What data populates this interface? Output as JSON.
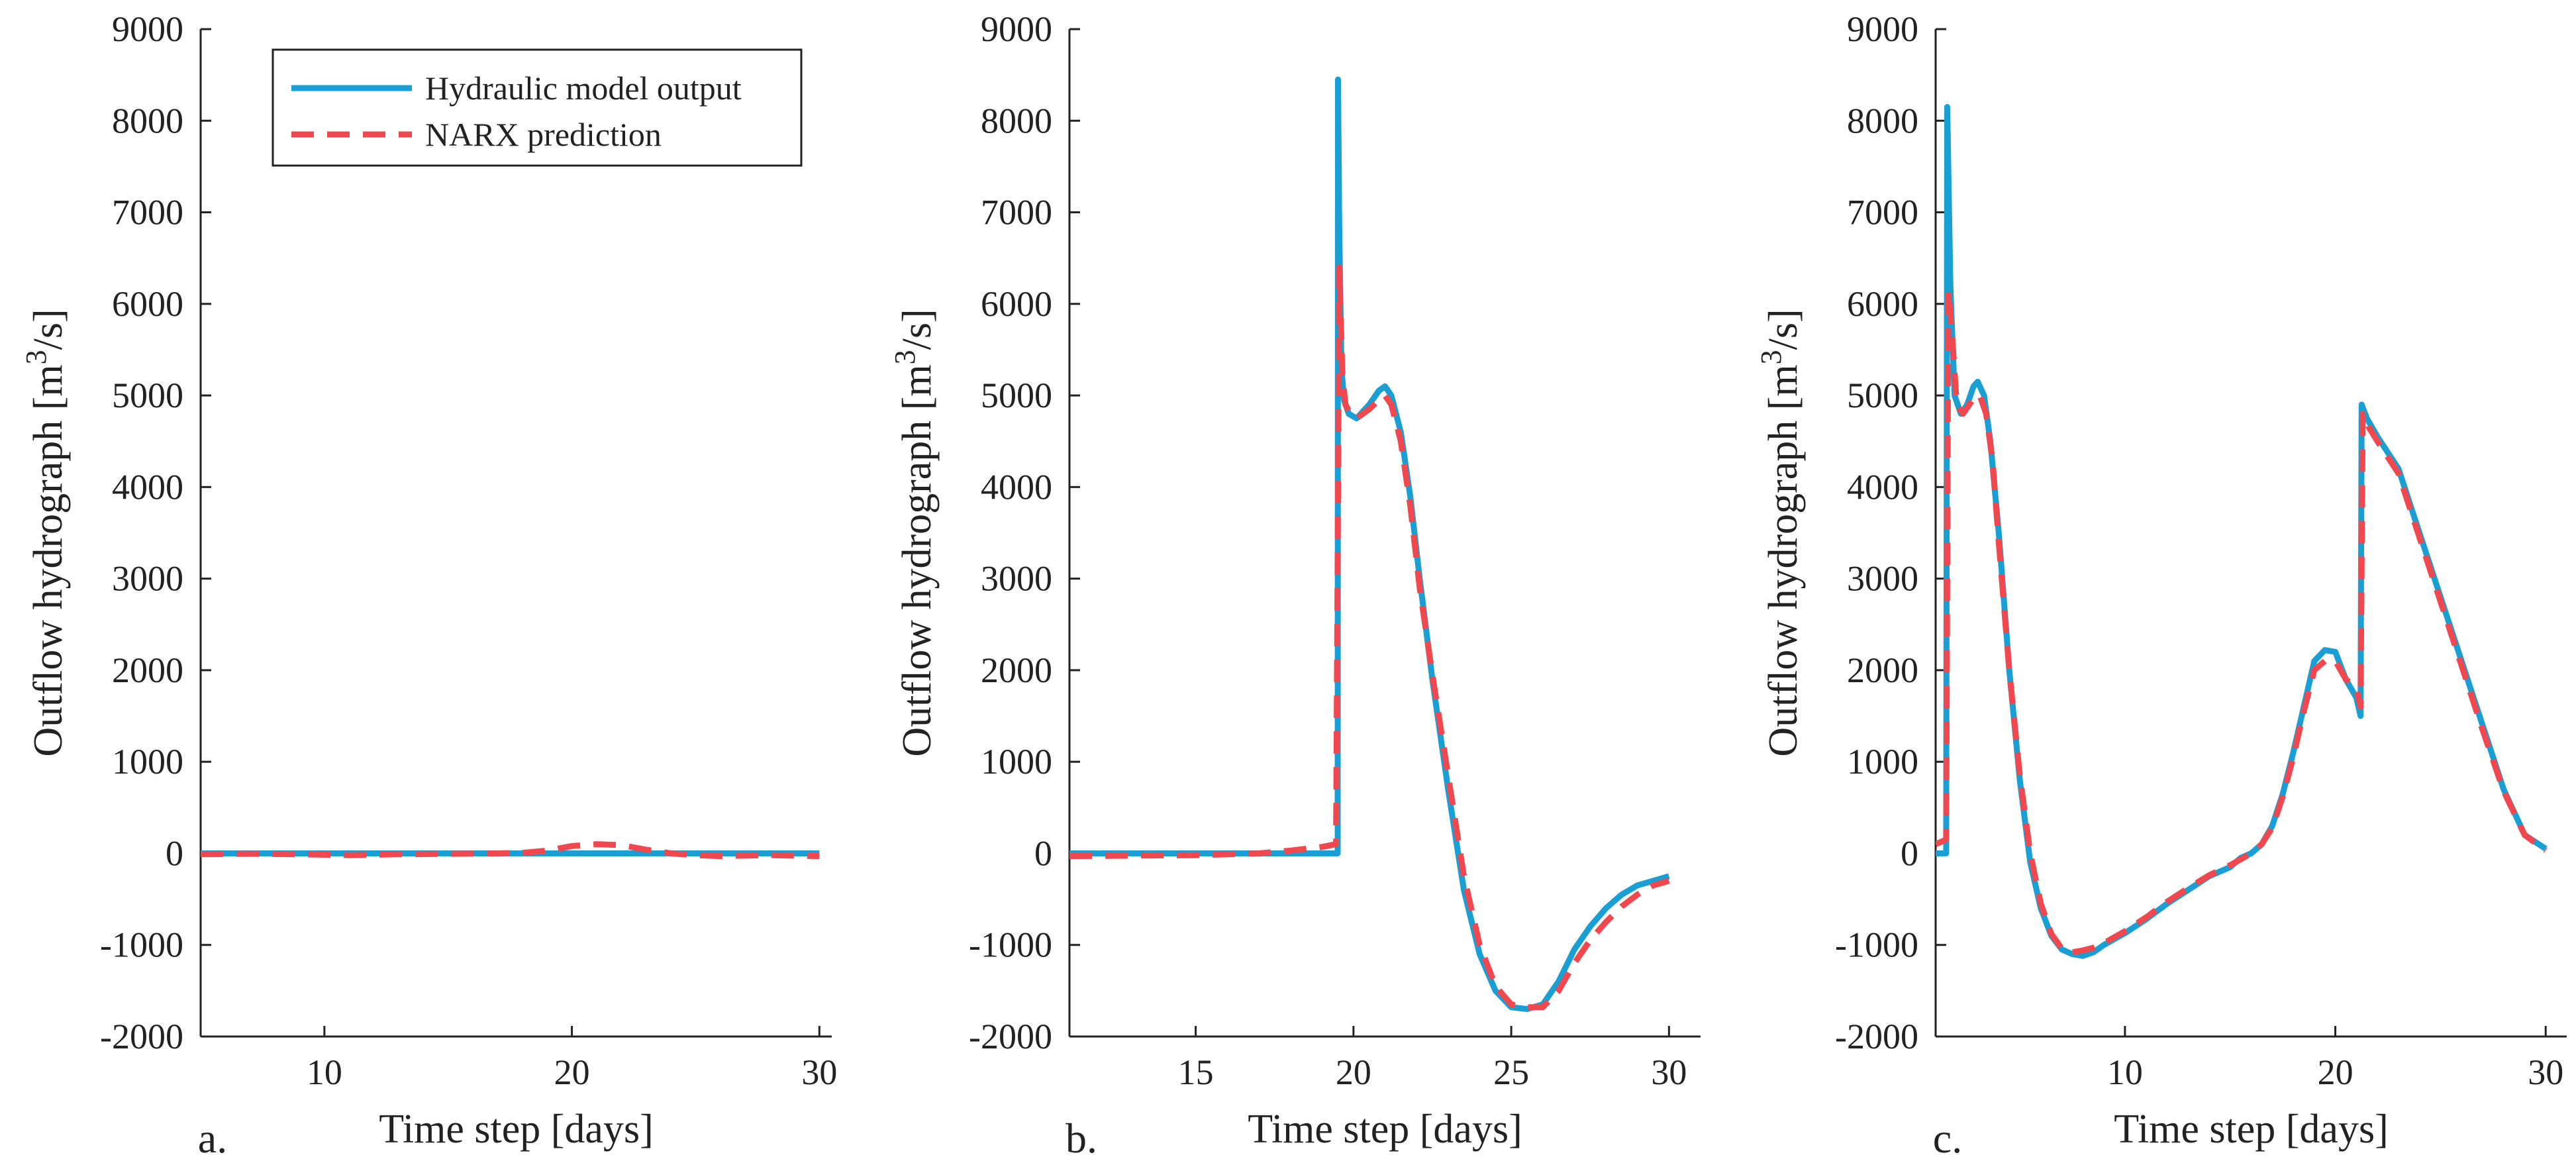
{
  "figure": {
    "colors": {
      "hydraulic": "#1a9fd4",
      "narx": "#f0484e",
      "axis": "#222222"
    },
    "legend": {
      "items": [
        {
          "label": "Hydraulic model output",
          "style": "solid",
          "color": "#1a9fd4"
        },
        {
          "label": "NARX prediction",
          "style": "dashed",
          "color": "#f0484e"
        }
      ]
    }
  },
  "chart_data": [
    {
      "type": "line",
      "panel_letter": "a.",
      "xlabel": "Time step [days]",
      "ylabel_main": "Outflow hydrograph [m",
      "ylabel_sup": "3",
      "ylabel_tail": "/s]",
      "xlim": [
        5,
        30.5
      ],
      "ylim": [
        -2000,
        9000
      ],
      "xticks": [
        10,
        20,
        30
      ],
      "yticks": [
        -2000,
        -1000,
        0,
        1000,
        2000,
        3000,
        4000,
        5000,
        6000,
        7000,
        8000,
        9000
      ],
      "series": [
        {
          "name": "Hydraulic model output",
          "x": [
            5,
            30
          ],
          "y": [
            0,
            0
          ]
        },
        {
          "name": "NARX prediction",
          "x": [
            5,
            7,
            9,
            11,
            13,
            15,
            17,
            18,
            19,
            20,
            21,
            22,
            23,
            24,
            25,
            26,
            28,
            30
          ],
          "y": [
            -10,
            -5,
            -10,
            -20,
            -10,
            -5,
            0,
            5,
            30,
            80,
            100,
            90,
            40,
            0,
            -20,
            -30,
            -20,
            -30
          ]
        }
      ]
    },
    {
      "type": "line",
      "panel_letter": "b.",
      "xlabel": "Time step [days]",
      "ylabel_main": "Outflow hydrograph [m",
      "ylabel_sup": "3",
      "ylabel_tail": "/s]",
      "xlim": [
        11,
        31
      ],
      "ylim": [
        -2000,
        9000
      ],
      "xticks": [
        15,
        20,
        25,
        30
      ],
      "yticks": [
        -2000,
        -1000,
        0,
        1000,
        2000,
        3000,
        4000,
        5000,
        6000,
        7000,
        8000,
        9000
      ],
      "series": [
        {
          "name": "Hydraulic model output",
          "x": [
            11,
            19.5,
            19.51,
            19.55,
            19.62,
            19.7,
            19.85,
            20.1,
            20.5,
            20.8,
            21,
            21.2,
            21.5,
            21.8,
            22.1,
            22.5,
            23,
            23.5,
            24,
            24.5,
            25,
            25.5,
            26,
            26.5,
            27,
            27.5,
            28,
            28.5,
            29,
            29.5,
            30
          ],
          "y": [
            0,
            0,
            8450,
            6800,
            5300,
            4950,
            4800,
            4750,
            4900,
            5050,
            5100,
            5000,
            4600,
            3900,
            3000,
            1900,
            700,
            -400,
            -1100,
            -1500,
            -1680,
            -1700,
            -1650,
            -1400,
            -1050,
            -800,
            -600,
            -450,
            -350,
            -300,
            -250
          ]
        },
        {
          "name": "NARX prediction",
          "x": [
            11,
            15,
            17,
            18,
            19,
            19.45,
            19.55,
            19.65,
            19.75,
            19.9,
            20.1,
            20.5,
            20.8,
            21,
            21.2,
            21.5,
            21.8,
            22.1,
            22.5,
            23,
            23.5,
            24,
            24.5,
            25,
            25.5,
            26,
            26.5,
            27,
            27.5,
            28,
            28.5,
            29,
            29.5,
            30
          ],
          "y": [
            -30,
            -20,
            0,
            30,
            70,
            100,
            6400,
            5200,
            4900,
            4800,
            4750,
            4850,
            4950,
            5000,
            4900,
            4500,
            3800,
            2900,
            1950,
            850,
            -250,
            -1000,
            -1450,
            -1650,
            -1680,
            -1680,
            -1500,
            -1200,
            -950,
            -750,
            -580,
            -450,
            -350,
            -300
          ]
        }
      ]
    },
    {
      "type": "line",
      "panel_letter": "c.",
      "xlabel": "Time step [days]",
      "ylabel_main": "Outflow hydrograph [m",
      "ylabel_sup": "3",
      "ylabel_tail": "/s]",
      "xlim": [
        1,
        31
      ],
      "ylim": [
        -2000,
        9000
      ],
      "xticks": [
        10,
        20,
        30
      ],
      "yticks": [
        -2000,
        -1000,
        0,
        1000,
        2000,
        3000,
        4000,
        5000,
        6000,
        7000,
        8000,
        9000
      ],
      "series": [
        {
          "name": "Hydraulic model output",
          "x": [
            1,
            1.5,
            1.55,
            1.7,
            1.9,
            2.2,
            2.5,
            2.8,
            3,
            3.3,
            3.6,
            4,
            4.5,
            5,
            5.5,
            6,
            6.5,
            7,
            7.5,
            8,
            8.5,
            9,
            10,
            11,
            12,
            13,
            14,
            15,
            15.5,
            16,
            16.5,
            17,
            17.5,
            18,
            18.5,
            19,
            19.5,
            20,
            20.5,
            21,
            21.2,
            21.25,
            21.5,
            22,
            23,
            24,
            25,
            26,
            27,
            28,
            29,
            30
          ],
          "y": [
            0,
            0,
            8150,
            6200,
            5000,
            4800,
            4900,
            5100,
            5150,
            5000,
            4500,
            3500,
            2000,
            800,
            -100,
            -600,
            -900,
            -1050,
            -1100,
            -1120,
            -1080,
            -1000,
            -870,
            -720,
            -550,
            -400,
            -250,
            -150,
            -50,
            0,
            100,
            300,
            650,
            1100,
            1600,
            2100,
            2220,
            2200,
            1900,
            1700,
            1500,
            4900,
            4750,
            4550,
            4200,
            3500,
            2800,
            2100,
            1400,
            700,
            200,
            50
          ]
        },
        {
          "name": "NARX prediction",
          "x": [
            1,
            1.5,
            1.6,
            1.8,
            2,
            2.3,
            2.6,
            2.9,
            3.1,
            3.4,
            3.7,
            4,
            4.5,
            5,
            5.5,
            6,
            6.5,
            7,
            7.5,
            8,
            8.5,
            9,
            10,
            11,
            12,
            13,
            14,
            15,
            16,
            16.5,
            17,
            17.5,
            18,
            18.5,
            19,
            19.5,
            20,
            20.5,
            21,
            21.2,
            21.3,
            21.6,
            22,
            23,
            24,
            25,
            26,
            27,
            28,
            29,
            30
          ],
          "y": [
            100,
            150,
            6150,
            5600,
            4900,
            4800,
            4900,
            5000,
            5000,
            4800,
            4300,
            3400,
            2000,
            850,
            0,
            -550,
            -880,
            -1040,
            -1080,
            -1060,
            -1030,
            -980,
            -850,
            -700,
            -530,
            -380,
            -240,
            -130,
            0,
            100,
            280,
            620,
            1050,
            1550,
            2000,
            2100,
            2100,
            1900,
            1800,
            1600,
            4800,
            4650,
            4500,
            4150,
            3450,
            2750,
            2050,
            1350,
            680,
            200,
            30
          ]
        }
      ]
    }
  ]
}
